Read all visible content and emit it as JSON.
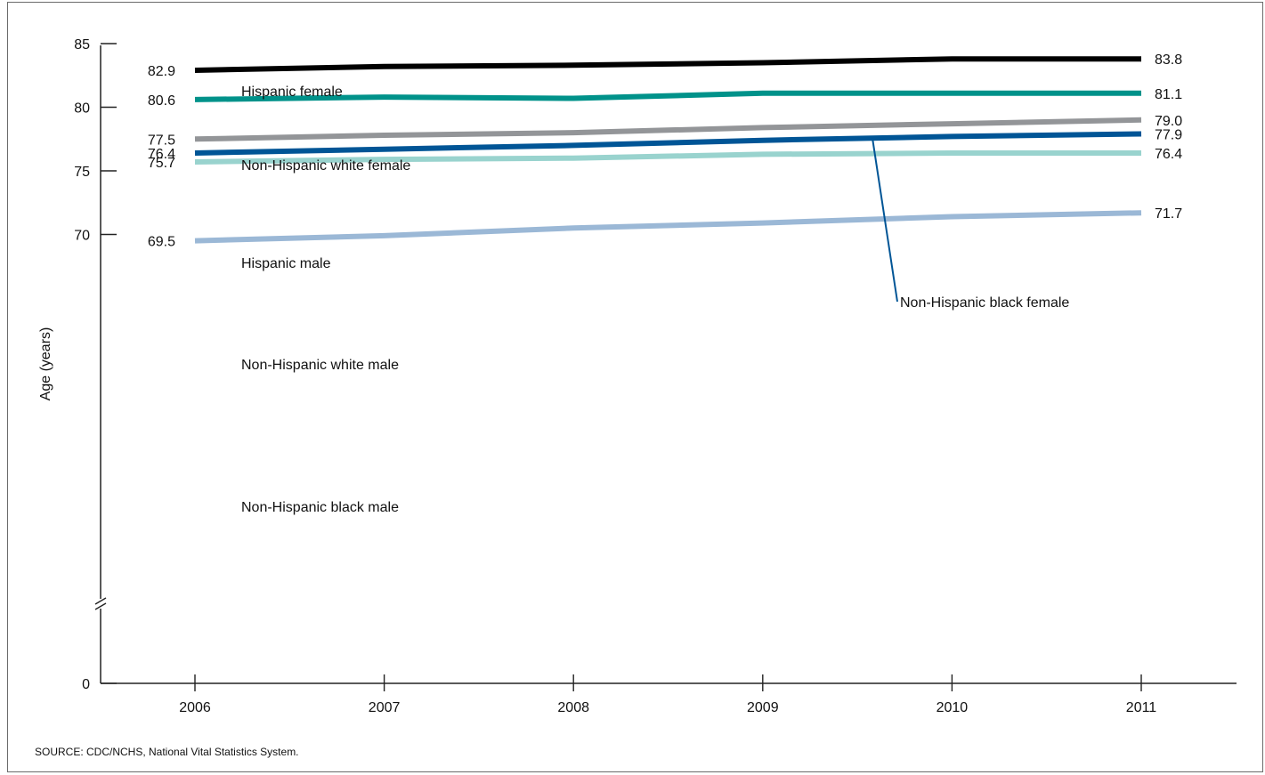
{
  "chart_data": {
    "type": "line",
    "title": "",
    "xlabel": "",
    "ylabel": "Age (years)",
    "x": [
      "2006",
      "2007",
      "2008",
      "2009",
      "2010",
      "2011"
    ],
    "y_ticks": [
      "0",
      "70",
      "75",
      "80",
      "85"
    ],
    "ylim": [
      0,
      85
    ],
    "axis_break": true,
    "series": [
      {
        "name": "Hispanic female",
        "color": "#000000",
        "values": [
          82.9,
          83.2,
          83.3,
          83.5,
          83.8,
          83.8
        ],
        "start_label": "82.9",
        "end_label": "83.8"
      },
      {
        "name": "Non-Hispanic white female",
        "color": "#00928a",
        "values": [
          80.6,
          80.8,
          80.7,
          81.1,
          81.1,
          81.1
        ],
        "start_label": "80.6",
        "end_label": "81.1"
      },
      {
        "name": "Hispanic male",
        "color": "#939598",
        "values": [
          77.5,
          77.8,
          78.0,
          78.4,
          78.7,
          79.0
        ],
        "start_label": "77.5",
        "end_label": "79.0"
      },
      {
        "name": "Non-Hispanic black female",
        "color": "#005596",
        "values": [
          76.4,
          76.7,
          77.0,
          77.4,
          77.7,
          77.9
        ],
        "start_label": "76.4",
        "end_label": "77.9"
      },
      {
        "name": "Non-Hispanic white male",
        "color": "#99d3ce",
        "values": [
          75.7,
          75.9,
          76.0,
          76.3,
          76.4,
          76.4
        ],
        "start_label": "75.7",
        "end_label": "76.4"
      },
      {
        "name": "Non-Hispanic black male",
        "color": "#9bb8d6",
        "values": [
          69.5,
          69.9,
          70.5,
          70.9,
          71.4,
          71.7
        ],
        "start_label": "69.5",
        "end_label": "71.7"
      }
    ]
  },
  "source": "SOURCE: CDC/NCHS, National Vital Statistics System."
}
